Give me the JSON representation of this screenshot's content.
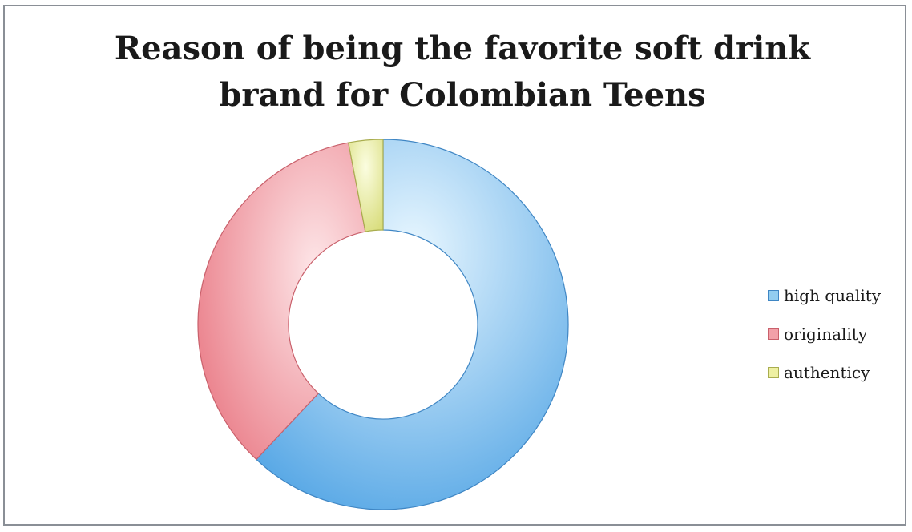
{
  "chart_data": {
    "type": "pie",
    "variant": "donut",
    "title_lines": [
      "Reason of being the favorite soft drink",
      "brand for Colombian Teens"
    ],
    "categories": [
      "high quality",
      "originality",
      "authenticy"
    ],
    "values": [
      62,
      35,
      3
    ],
    "colors": [
      "#92cdf0",
      "#f2a0a8",
      "#eef0a2"
    ],
    "legend_position": "right"
  }
}
